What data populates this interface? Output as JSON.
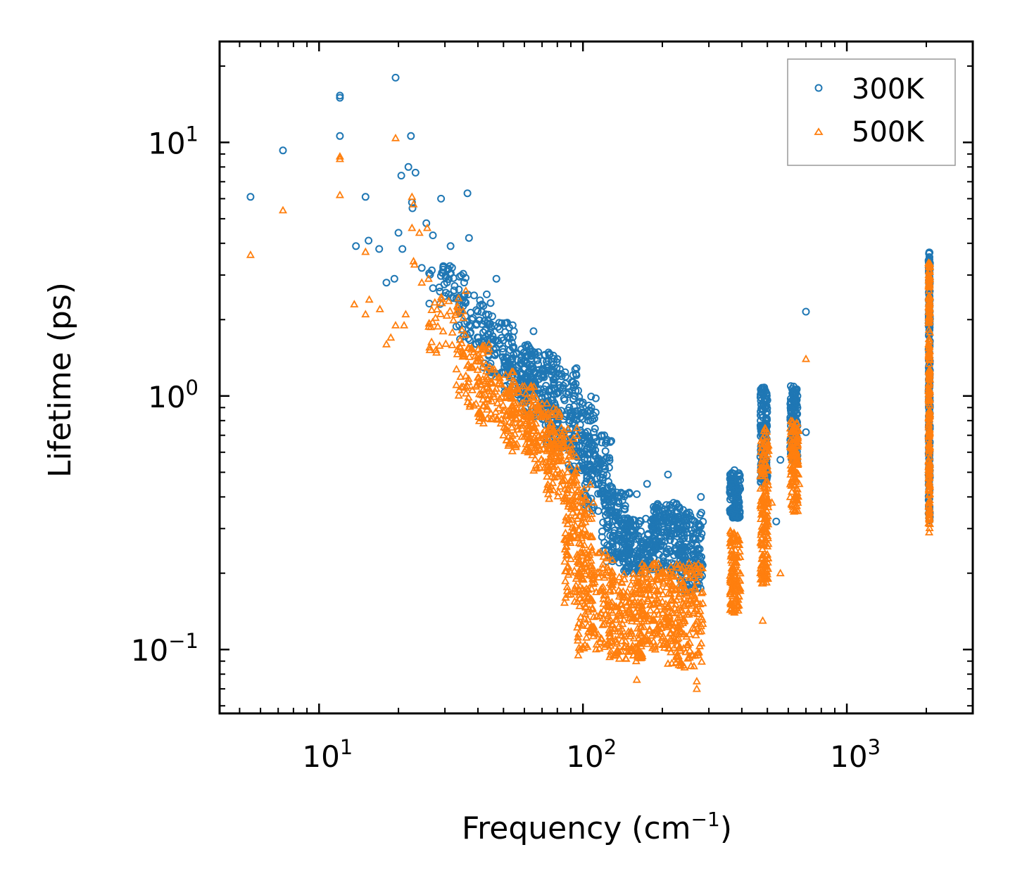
{
  "chart_data": {
    "type": "scatter",
    "xlabel": "Frequency (cm",
    "xlabel_sup": "−1",
    "xlabel_end": ")",
    "ylabel": "Lifetime (ps)",
    "xscale": "log",
    "yscale": "log",
    "xlim": [
      4.2,
      3000
    ],
    "ylim": [
      0.056,
      25
    ],
    "x_ticks": [
      {
        "value": 10,
        "base": "10",
        "exp": "1"
      },
      {
        "value": 100,
        "base": "10",
        "exp": "2"
      },
      {
        "value": 1000,
        "base": "10",
        "exp": "3"
      }
    ],
    "y_ticks": [
      {
        "value": 0.1,
        "base": "10",
        "exp": "−1"
      },
      {
        "value": 1,
        "base": "10",
        "exp": "0"
      },
      {
        "value": 10,
        "base": "10",
        "exp": "1"
      }
    ],
    "legend_position": "top-right",
    "series": [
      {
        "name": "300K",
        "marker": "circle",
        "color": "#1f77b4",
        "points": [
          [
            5.5,
            6.1
          ],
          [
            7.3,
            9.3
          ],
          [
            12.0,
            15.3
          ],
          [
            12.0,
            15.0
          ],
          [
            12.0,
            10.6
          ],
          [
            15.0,
            6.1
          ],
          [
            19.5,
            18.0
          ],
          [
            22.3,
            10.6
          ],
          [
            21.8,
            8.0
          ],
          [
            23.2,
            7.6
          ],
          [
            20.5,
            7.4
          ],
          [
            22.5,
            5.8
          ],
          [
            22.6,
            5.5
          ],
          [
            29.0,
            6.0
          ],
          [
            36.5,
            6.3
          ],
          [
            13.8,
            3.9
          ],
          [
            15.4,
            4.1
          ],
          [
            16.9,
            3.8
          ],
          [
            20.0,
            4.4
          ],
          [
            20.7,
            3.8
          ],
          [
            25.5,
            4.8
          ],
          [
            27.0,
            4.3
          ],
          [
            31.5,
            3.9
          ],
          [
            37.0,
            4.2
          ],
          [
            19.3,
            2.9
          ],
          [
            18.0,
            2.8
          ],
          [
            24.5,
            3.2
          ],
          [
            47.0,
            2.9
          ],
          [
            65.0,
            1.8
          ],
          [
            80.0,
            1.4
          ],
          [
            96.0,
            1.05
          ],
          [
            110.0,
            0.72
          ],
          [
            118.0,
            0.7
          ],
          [
            160.0,
            0.41
          ],
          [
            175.0,
            0.45
          ],
          [
            210.0,
            0.49
          ],
          [
            280.0,
            0.4
          ],
          [
            375.0,
            0.51
          ],
          [
            560.0,
            0.56
          ],
          [
            700.0,
            2.15
          ],
          [
            700.0,
            0.72
          ],
          [
            540.0,
            0.32
          ]
        ],
        "clusters": [
          {
            "x": [
              26,
              36
            ],
            "y": [
              2.3,
              3.3
            ],
            "n": 45
          },
          {
            "x": [
              33,
              45
            ],
            "y": [
              1.6,
              2.6
            ],
            "n": 60
          },
          {
            "x": [
              40,
              55
            ],
            "y": [
              1.2,
              2.1
            ],
            "n": 80
          },
          {
            "x": [
              50,
              66
            ],
            "y": [
              1.0,
              1.6
            ],
            "n": 90
          },
          {
            "x": [
              58,
              80
            ],
            "y": [
              0.8,
              1.5
            ],
            "n": 110
          },
          {
            "x": [
              72,
              95
            ],
            "y": [
              0.62,
              1.3
            ],
            "n": 110
          },
          {
            "x": [
              88,
              112
            ],
            "y": [
              0.5,
              1.0
            ],
            "n": 110
          },
          {
            "x": [
              100,
              130
            ],
            "y": [
              0.35,
              0.7
            ],
            "n": 110
          },
          {
            "x": [
              118,
              150
            ],
            "y": [
              0.22,
              0.42
            ],
            "n": 130
          },
          {
            "x": [
              140,
              190
            ],
            "y": [
              0.2,
              0.33
            ],
            "n": 160
          },
          {
            "x": [
              185,
              240
            ],
            "y": [
              0.2,
              0.38
            ],
            "n": 160
          },
          {
            "x": [
              230,
              285
            ],
            "y": [
              0.17,
              0.35
            ],
            "n": 140
          },
          {
            "x": [
              360,
              395
            ],
            "y": [
              0.33,
              0.5
            ],
            "n": 120
          },
          {
            "x": [
              470,
              500
            ],
            "y": [
              0.45,
              1.1
            ],
            "n": 160
          },
          {
            "x": [
              610,
              650
            ],
            "y": [
              0.55,
              1.1
            ],
            "n": 130
          },
          {
            "x": [
              2040,
              2065
            ],
            "y": [
              0.32,
              3.8
            ],
            "n": 230
          }
        ]
      },
      {
        "name": "500K",
        "marker": "triangle",
        "color": "#ff7f0e",
        "points": [
          [
            5.5,
            3.6
          ],
          [
            7.3,
            5.4
          ],
          [
            12.0,
            8.8
          ],
          [
            12.0,
            8.6
          ],
          [
            12.0,
            6.2
          ],
          [
            19.5,
            10.4
          ],
          [
            22.5,
            6.1
          ],
          [
            22.8,
            5.7
          ],
          [
            15.0,
            3.7
          ],
          [
            22.5,
            4.6
          ],
          [
            24.0,
            4.4
          ],
          [
            25.7,
            4.6
          ],
          [
            13.6,
            2.3
          ],
          [
            15.0,
            2.1
          ],
          [
            15.5,
            2.4
          ],
          [
            17.0,
            2.2
          ],
          [
            19.5,
            1.9
          ],
          [
            21.3,
            2.1
          ],
          [
            18.0,
            1.6
          ],
          [
            21.0,
            1.9
          ],
          [
            18.7,
            1.7
          ],
          [
            24.5,
            2.8
          ],
          [
            26.0,
            2.9
          ],
          [
            22.8,
            3.4
          ],
          [
            23.0,
            3.3
          ],
          [
            36.0,
            2.6
          ],
          [
            42.0,
            0.78
          ],
          [
            50.0,
            0.7
          ],
          [
            62.0,
            0.6
          ],
          [
            75.0,
            0.55
          ],
          [
            96.0,
            0.095
          ],
          [
            160.0,
            0.076
          ],
          [
            210.0,
            0.088
          ],
          [
            270.0,
            0.07
          ],
          [
            270.0,
            0.075
          ],
          [
            480.0,
            0.13
          ],
          [
            560.0,
            0.2
          ],
          [
            700.0,
            1.4
          ],
          [
            660.0,
            0.45
          ],
          [
            520.0,
            0.38
          ],
          [
            375.0,
            0.14
          ],
          [
            2050.0,
            0.29
          ]
        ],
        "clusters": [
          {
            "x": [
              26,
              36
            ],
            "y": [
              1.4,
              2.5
            ],
            "n": 45
          },
          {
            "x": [
              33,
              45
            ],
            "y": [
              0.9,
              1.6
            ],
            "n": 70
          },
          {
            "x": [
              40,
              56
            ],
            "y": [
              0.75,
              1.3
            ],
            "n": 90
          },
          {
            "x": [
              50,
              68
            ],
            "y": [
              0.6,
              1.1
            ],
            "n": 100
          },
          {
            "x": [
              60,
              82
            ],
            "y": [
              0.5,
              0.95
            ],
            "n": 110
          },
          {
            "x": [
              72,
              95
            ],
            "y": [
              0.38,
              0.75
            ],
            "n": 110
          },
          {
            "x": [
              85,
              110
            ],
            "y": [
              0.15,
              0.45
            ],
            "n": 150
          },
          {
            "x": [
              95,
              130
            ],
            "y": [
              0.1,
              0.25
            ],
            "n": 150
          },
          {
            "x": [
              125,
              170
            ],
            "y": [
              0.09,
              0.2
            ],
            "n": 170
          },
          {
            "x": [
              165,
              220
            ],
            "y": [
              0.1,
              0.22
            ],
            "n": 170
          },
          {
            "x": [
              215,
              285
            ],
            "y": [
              0.085,
              0.22
            ],
            "n": 170
          },
          {
            "x": [
              360,
              395
            ],
            "y": [
              0.14,
              0.3
            ],
            "n": 120
          },
          {
            "x": [
              470,
              505
            ],
            "y": [
              0.18,
              0.75
            ],
            "n": 170
          },
          {
            "x": [
              610,
              655
            ],
            "y": [
              0.35,
              0.8
            ],
            "n": 130
          },
          {
            "x": [
              2040,
              2065
            ],
            "y": [
              0.3,
              3.4
            ],
            "n": 230
          }
        ]
      }
    ]
  }
}
